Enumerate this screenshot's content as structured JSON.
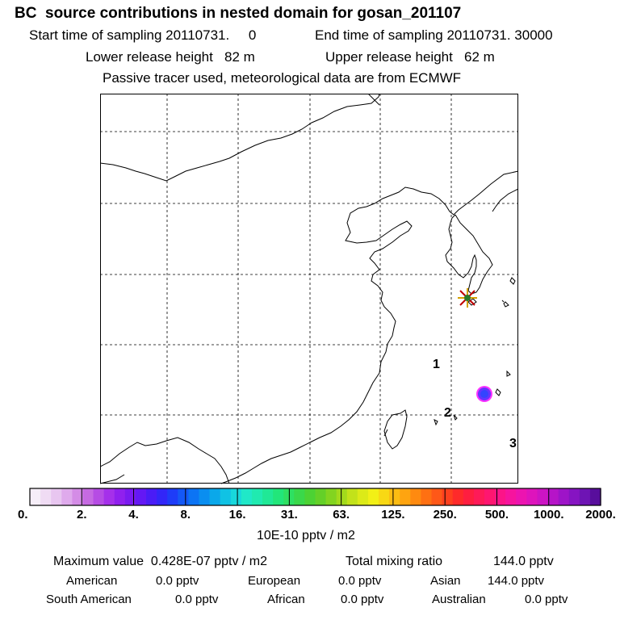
{
  "header": {
    "title": "BC  source contributions in nested domain for gosan_201107",
    "start_label": "Start time of sampling 20110731.     0",
    "end_label": "End time of sampling 20110731. 30000",
    "lower_label": "Lower release height   82 m",
    "upper_label": "Upper release height   62 m",
    "note": "Passive tracer used, meteorological data are from ECMWF"
  },
  "map": {
    "markers": [
      "1",
      "2",
      "3"
    ],
    "site_marker": "star-icon",
    "plume_colors": [
      "#ff33ff",
      "#6633ff",
      "#3344ff"
    ]
  },
  "colorbar": {
    "tick_labels": [
      "0.",
      "2.",
      "4.",
      "8.",
      "16.",
      "31.",
      "63.",
      "125.",
      "250.",
      "500.",
      "1000.",
      "2000."
    ],
    "colors": [
      "#f6eef8",
      "#f0dcf4",
      "#e8c6f0",
      "#dfaaec",
      "#d48ce6",
      "#c66ae2",
      "#b64ce4",
      "#a530ea",
      "#9020ee",
      "#7a1af0",
      "#6418f4",
      "#4a1cf6",
      "#3226f8",
      "#1e3cf8",
      "#1458f6",
      "#0c74f4",
      "#0a8ef0",
      "#0aa8ea",
      "#10c2e4",
      "#18d8dc",
      "#20e8c8",
      "#20eab0",
      "#20e896",
      "#22e67a",
      "#2ee062",
      "#3ad84a",
      "#4cd234",
      "#64d028",
      "#82d420",
      "#a2da1c",
      "#c2e21a",
      "#dcea18",
      "#f2f016",
      "#f8d814",
      "#fcbc12",
      "#fea410",
      "#fe8a10",
      "#fe7012",
      "#fe5818",
      "#fe401e",
      "#fe2a2a",
      "#fe1e40",
      "#fe1a58",
      "#fe1670",
      "#fc1488",
      "#f6149e",
      "#ec14b0",
      "#de14bc",
      "#cc14c4",
      "#b614c8",
      "#9e14c8",
      "#8614c2",
      "#6e14b4",
      "#580e9c"
    ],
    "units": "10E-10 pptv / m2"
  },
  "summary": {
    "max_label": "Maximum value  0.428E-07 pptv / m2",
    "total_label": "Total mixing ratio",
    "total_value": "144.0 pptv",
    "regions": [
      {
        "name": "American",
        "value": "0.0 pptv"
      },
      {
        "name": "European",
        "value": "0.0 pptv"
      },
      {
        "name": "Asian",
        "value": "144.0 pptv"
      },
      {
        "name": "South American",
        "value": "0.0 pptv"
      },
      {
        "name": "African",
        "value": "0.0 pptv"
      },
      {
        "name": "Australian",
        "value": "0.0 pptv"
      }
    ]
  }
}
